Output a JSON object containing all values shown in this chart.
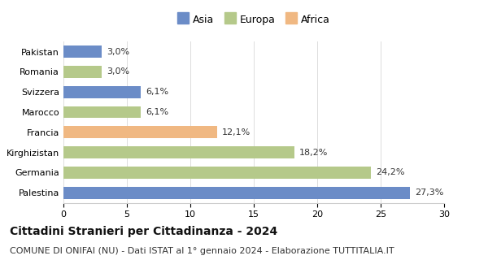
{
  "categories": [
    "Pakistan",
    "Romania",
    "Svizzera",
    "Marocco",
    "Francia",
    "Kirghizistan",
    "Germania",
    "Palestina"
  ],
  "values": [
    27.3,
    24.2,
    18.2,
    12.1,
    6.1,
    6.1,
    3.0,
    3.0
  ],
  "labels": [
    "27,3%",
    "24,2%",
    "18,2%",
    "12,1%",
    "6,1%",
    "6,1%",
    "3,0%",
    "3,0%"
  ],
  "colors": [
    "#6b8cc7",
    "#b5c98a",
    "#b5c98a",
    "#f0b882",
    "#b5c98a",
    "#6b8cc7",
    "#b5c98a",
    "#6b8cc7"
  ],
  "legend": [
    {
      "label": "Asia",
      "color": "#6b8cc7"
    },
    {
      "label": "Europa",
      "color": "#b5c98a"
    },
    {
      "label": "Africa",
      "color": "#f0b882"
    }
  ],
  "xlim": [
    0,
    30
  ],
  "xticks": [
    0,
    5,
    10,
    15,
    20,
    25,
    30
  ],
  "title": "Cittadini Stranieri per Cittadinanza - 2024",
  "subtitle": "COMUNE DI ONIFAI (NU) - Dati ISTAT al 1° gennaio 2024 - Elaborazione TUTTITALIA.IT",
  "title_fontsize": 10,
  "subtitle_fontsize": 8,
  "label_fontsize": 8,
  "tick_fontsize": 8,
  "legend_fontsize": 9,
  "background_color": "#ffffff"
}
